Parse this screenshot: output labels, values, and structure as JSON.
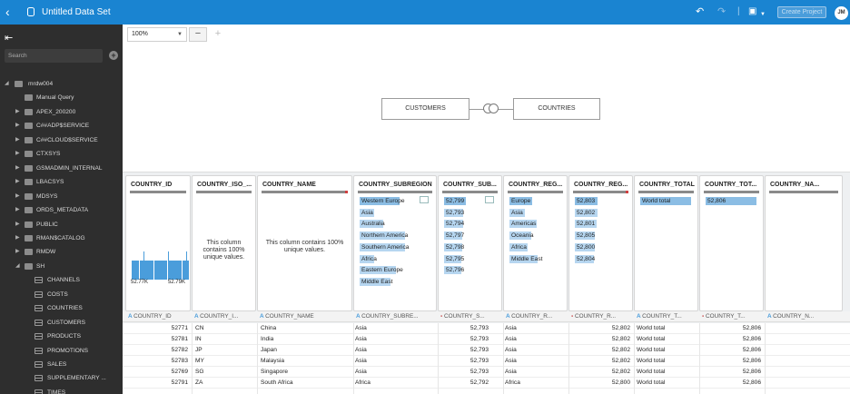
{
  "header": {
    "title": "Untitled Data Set",
    "create_label": "Create Project",
    "avatar": "JM",
    "icons": [
      "back-arrow-icon",
      "dataset-icon",
      "undo-icon",
      "redo-icon",
      "save-icon",
      "chevron-down-icon"
    ]
  },
  "sidebar": {
    "search_placeholder": "Search",
    "items": [
      {
        "label": "mrdw004",
        "level": 0,
        "icon": "connection-icon"
      },
      {
        "label": "Manual Query",
        "level": 1,
        "icon": "query-icon"
      },
      {
        "label": "APEX_200200",
        "level": 1,
        "icon": "schema-icon"
      },
      {
        "label": "C##ADP$SERVICE",
        "level": 1,
        "icon": "schema-icon"
      },
      {
        "label": "C##CLOUD$SERVICE",
        "level": 1,
        "icon": "schema-icon"
      },
      {
        "label": "CTXSYS",
        "level": 1,
        "icon": "schema-icon"
      },
      {
        "label": "GSMADMIN_INTERNAL",
        "level": 1,
        "icon": "schema-icon"
      },
      {
        "label": "LBACSYS",
        "level": 1,
        "icon": "schema-icon"
      },
      {
        "label": "MDSYS",
        "level": 1,
        "icon": "schema-icon"
      },
      {
        "label": "ORDS_METADATA",
        "level": 1,
        "icon": "schema-icon"
      },
      {
        "label": "PUBLIC",
        "level": 1,
        "icon": "schema-icon"
      },
      {
        "label": "RMAN$CATALOG",
        "level": 1,
        "icon": "schema-icon"
      },
      {
        "label": "RMDW",
        "level": 1,
        "icon": "schema-icon"
      },
      {
        "label": "SH",
        "level": 1,
        "icon": "schema-icon"
      },
      {
        "label": "CHANNELS",
        "level": 2,
        "icon": "table-icon"
      },
      {
        "label": "COSTS",
        "level": 2,
        "icon": "table-icon"
      },
      {
        "label": "COUNTRIES",
        "level": 2,
        "icon": "table-icon"
      },
      {
        "label": "CUSTOMERS",
        "level": 2,
        "icon": "table-icon"
      },
      {
        "label": "PRODUCTS",
        "level": 2,
        "icon": "table-icon"
      },
      {
        "label": "PROMOTIONS",
        "level": 2,
        "icon": "table-icon"
      },
      {
        "label": "SALES",
        "level": 2,
        "icon": "table-icon"
      },
      {
        "label": "SUPPLEMENTARY ...",
        "level": 2,
        "icon": "table-icon"
      },
      {
        "label": "TIMES",
        "level": 2,
        "icon": "table-icon"
      }
    ]
  },
  "canvas": {
    "zoom": "100%",
    "zoom_out": "−",
    "zoom_in": "+",
    "entities": [
      "CUSTOMERS",
      "COUNTRIES"
    ]
  },
  "profile": {
    "columns": [
      {
        "name": "COUNTRY_ID",
        "hist_min": "52.77K",
        "hist_max": "52.79K"
      },
      {
        "name": "COUNTRY_ISO_...",
        "note": "This column contains 100% unique values."
      },
      {
        "name": "COUNTRY_NAME",
        "note": "This column contains 100% unique values."
      },
      {
        "name": "COUNTRY_SUBREGION",
        "values": [
          "Western Europe",
          "Asia",
          "Australia",
          "Northern America",
          "Southern America",
          "Africa",
          "Eastern Europe",
          "Middle East"
        ]
      },
      {
        "name": "COUNTRY_SUB...",
        "values": [
          "52,799",
          "52,793",
          "52,794",
          "52,797",
          "52,798",
          "52,795",
          "52,796"
        ]
      },
      {
        "name": "COUNTRY_REG...",
        "values": [
          "Europe",
          "Asia",
          "Americas",
          "Oceania",
          "Africa",
          "Middle East"
        ]
      },
      {
        "name": "COUNTRY_REG...",
        "values": [
          "52,803",
          "52,802",
          "52,801",
          "52,805",
          "52,800",
          "52,804"
        ]
      },
      {
        "name": "COUNTRY_TOTAL",
        "values": [
          "World total"
        ]
      },
      {
        "name": "COUNTRY_TOT...",
        "values": [
          "52,806"
        ]
      },
      {
        "name": "COUNTRY_NA..."
      }
    ],
    "histogram": [
      0.68,
      0.68,
      0.68,
      0.68,
      0.68,
      0.68,
      0.68,
      0.68,
      0.68,
      0.68,
      0.68,
      0.68,
      1.0,
      0.68,
      0.68,
      0.68,
      0.68,
      0.68,
      0.68,
      0.68,
      0.68,
      0.68,
      0.68,
      0.68,
      0.68,
      0.68,
      0.68,
      0.68,
      0.68,
      0.68,
      0.68,
      0.68,
      0.68,
      0.68,
      0.68,
      0.68,
      0.68,
      1.0,
      0.68,
      0.68,
      0.68,
      0.68,
      0.68,
      0.68,
      0.68,
      0.68,
      0.68,
      0.68,
      0.68,
      0.68,
      0.68,
      0.68,
      0.68,
      0.68,
      0.68,
      0.68,
      1.0,
      0.68,
      0.68
    ]
  },
  "table": {
    "headers": [
      {
        "label": "COUNTRY_ID",
        "type": "A"
      },
      {
        "label": "COUNTRY_I...",
        "type": "A"
      },
      {
        "label": "COUNTRY_NAME",
        "type": "A"
      },
      {
        "label": "COUNTRY_SUBRE...",
        "type": "A"
      },
      {
        "label": "COUNTRY_S...",
        "type": "#"
      },
      {
        "label": "COUNTRY_R...",
        "type": "A"
      },
      {
        "label": "COUNTRY_R...",
        "type": "#"
      },
      {
        "label": "COUNTRY_T...",
        "type": "A"
      },
      {
        "label": "COUNTRY_T...",
        "type": "#"
      },
      {
        "label": "COUNTRY_N...",
        "type": "A"
      }
    ],
    "rows": [
      [
        "52771",
        "CN",
        "China",
        "Asia",
        "52,793",
        "Asia",
        "52,802",
        "World total",
        "52,806"
      ],
      [
        "52781",
        "IN",
        "India",
        "Asia",
        "52,793",
        "Asia",
        "52,802",
        "World total",
        "52,806"
      ],
      [
        "52782",
        "JP",
        "Japan",
        "Asia",
        "52,793",
        "Asia",
        "52,802",
        "World total",
        "52,806"
      ],
      [
        "52783",
        "MY",
        "Malaysia",
        "Asia",
        "52,793",
        "Asia",
        "52,802",
        "World total",
        "52,806"
      ],
      [
        "52769",
        "SG",
        "Singapore",
        "Asia",
        "52,793",
        "Asia",
        "52,802",
        "World total",
        "52,806"
      ],
      [
        "52791",
        "ZA",
        "South Africa",
        "Africa",
        "52,792",
        "Africa",
        "52,800",
        "World total",
        "52,806"
      ]
    ]
  },
  "colors": {
    "accent": "#1a84d1",
    "sidebar": "#2e2e2e",
    "bar": "#4a9ddb"
  }
}
